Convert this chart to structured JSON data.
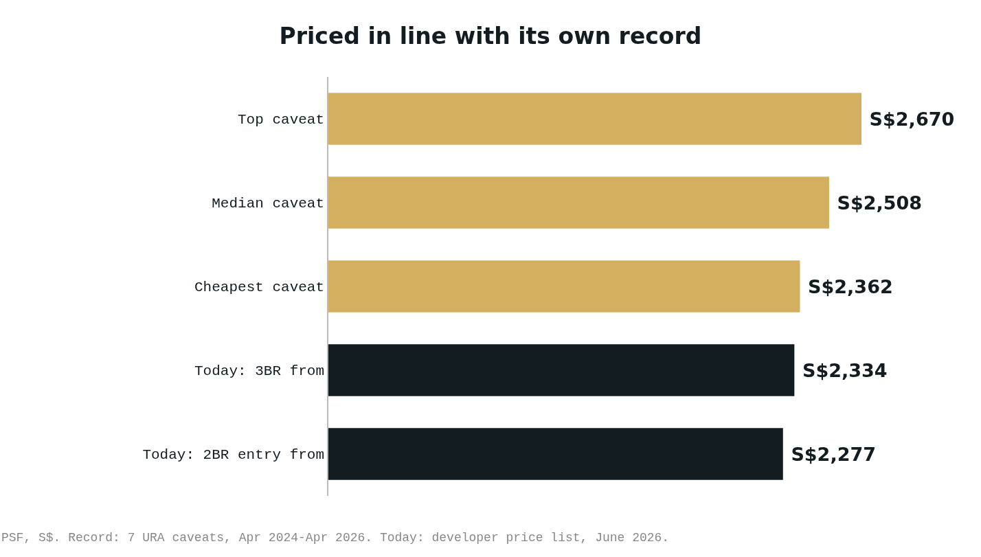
{
  "chart_data": {
    "type": "bar",
    "orientation": "horizontal",
    "title": "Priced in line with its own record",
    "categories": [
      "Top caveat",
      "Median caveat",
      "Cheapest caveat",
      "Today: 3BR from",
      "Today: 2BR entry from"
    ],
    "values": [
      2670,
      2508,
      2362,
      2334,
      2277
    ],
    "colors": [
      "#d4af5f",
      "#d4af5f",
      "#d4af5f",
      "#121c21",
      "#121c21"
    ],
    "value_labels": [
      "S$2,670",
      "S$2,508",
      "S$2,362",
      "S$2,334",
      "S$2,277"
    ],
    "annotations": [
      "PSF, S$. Record: 7 URA caveats, Apr 2024-Apr 2026. Today: developer price list, June 2026."
    ]
  }
}
